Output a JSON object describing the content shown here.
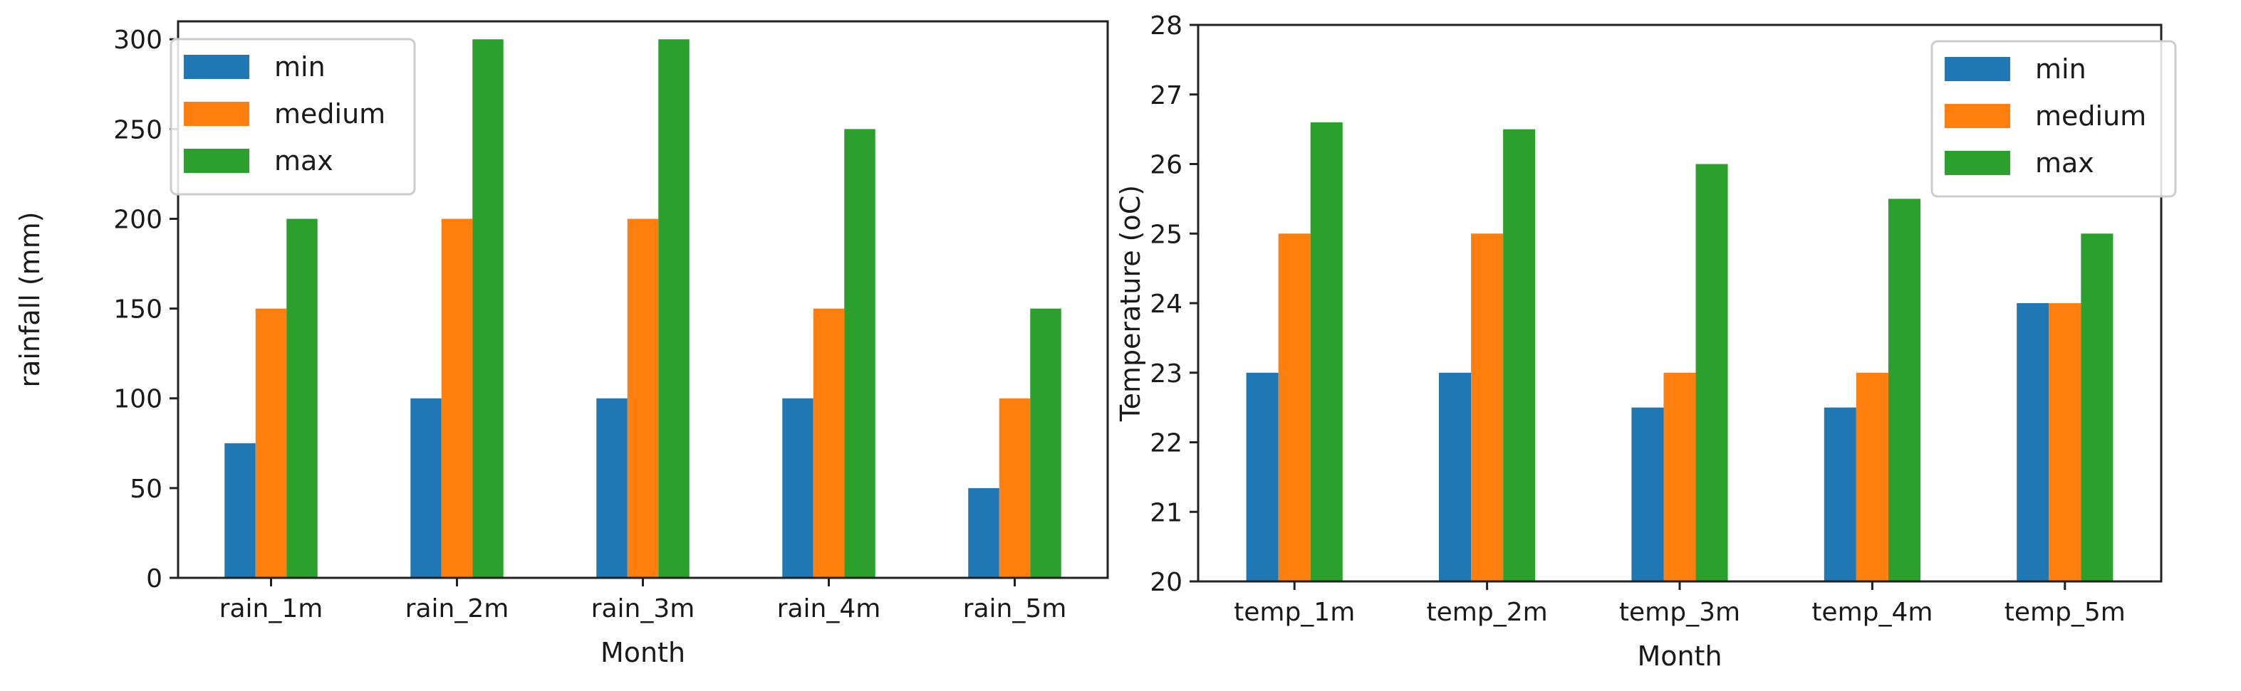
{
  "chart_data": [
    {
      "type": "bar",
      "title": "",
      "xlabel": "Month",
      "ylabel": "rainfall (mm)",
      "ylim": [
        0,
        310
      ],
      "yticks": [
        0,
        50,
        100,
        150,
        200,
        250,
        300
      ],
      "categories": [
        "rain_1m",
        "rain_2m",
        "rain_3m",
        "rain_4m",
        "rain_5m"
      ],
      "series": [
        {
          "name": "min",
          "color": "#1f77b4",
          "values": [
            75,
            100,
            100,
            100,
            50
          ]
        },
        {
          "name": "medium",
          "color": "#ff7f0e",
          "values": [
            150,
            200,
            200,
            150,
            100
          ]
        },
        {
          "name": "max",
          "color": "#2ca02c",
          "values": [
            200,
            300,
            300,
            250,
            150
          ]
        }
      ],
      "legend": "top-left",
      "grid": false
    },
    {
      "type": "bar",
      "title": "",
      "xlabel": "Month",
      "ylabel": "Temperature (oC)",
      "ylim": [
        20,
        28
      ],
      "yticks": [
        20,
        21,
        22,
        23,
        24,
        25,
        26,
        27,
        28
      ],
      "categories": [
        "temp_1m",
        "temp_2m",
        "temp_3m",
        "temp_4m",
        "temp_5m"
      ],
      "series": [
        {
          "name": "min",
          "color": "#1f77b4",
          "values": [
            23,
            23,
            22.5,
            22.5,
            24
          ]
        },
        {
          "name": "medium",
          "color": "#ff7f0e",
          "values": [
            25,
            25,
            23,
            23,
            24
          ]
        },
        {
          "name": "max",
          "color": "#2ca02c",
          "values": [
            26.6,
            26.5,
            26,
            25.5,
            25
          ]
        }
      ],
      "legend": "top-right",
      "grid": false
    }
  ]
}
